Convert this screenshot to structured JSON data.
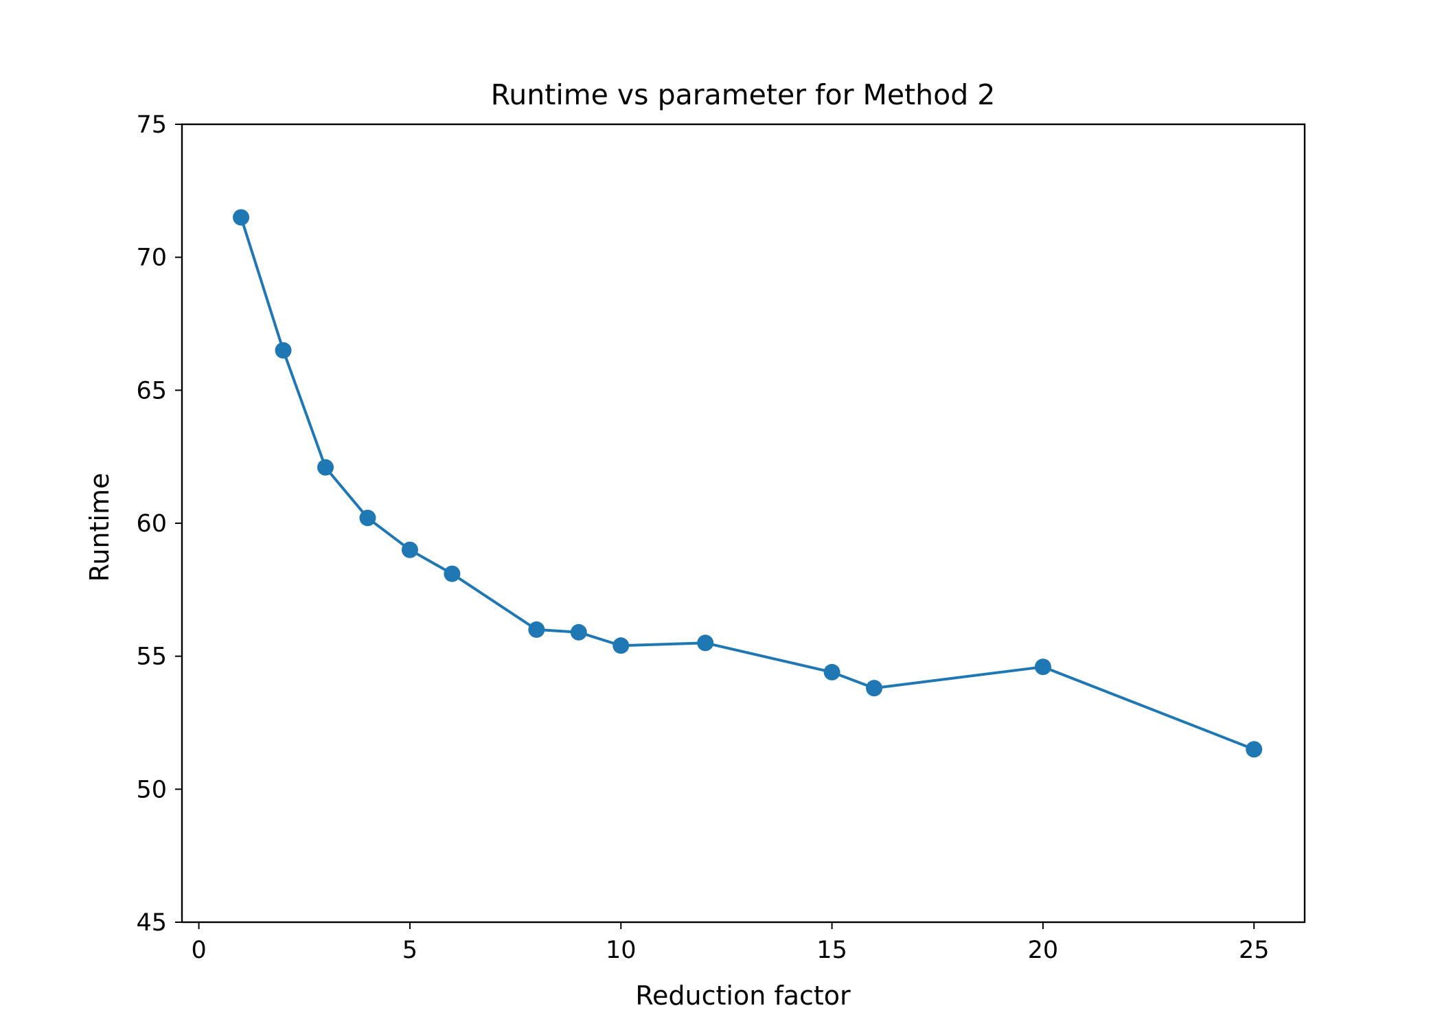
{
  "chart_data": {
    "type": "line",
    "title": "Runtime vs parameter for Method 2",
    "xlabel": "Reduction factor",
    "ylabel": "Runtime",
    "xlim": [
      -0.4,
      26.2
    ],
    "ylim": [
      45,
      75
    ],
    "xticks": [
      0,
      5,
      10,
      15,
      20,
      25
    ],
    "yticks": [
      45,
      50,
      55,
      60,
      65,
      70,
      75
    ],
    "xtick_labels": [
      "0",
      "5",
      "10",
      "15",
      "20",
      "25"
    ],
    "ytick_labels": [
      "45",
      "50",
      "55",
      "60",
      "65",
      "70",
      "75"
    ],
    "grid": false,
    "legend": "none",
    "line_color": "#1f77b4",
    "marker": "circle",
    "series": [
      {
        "x": [
          1,
          2,
          3,
          4,
          5,
          6,
          8,
          9,
          10,
          12,
          15,
          16,
          20,
          25
        ],
        "y": [
          71.5,
          66.5,
          62.1,
          60.2,
          59.0,
          58.1,
          56.0,
          55.9,
          55.4,
          55.5,
          54.4,
          53.8,
          54.6,
          51.5
        ]
      }
    ]
  }
}
